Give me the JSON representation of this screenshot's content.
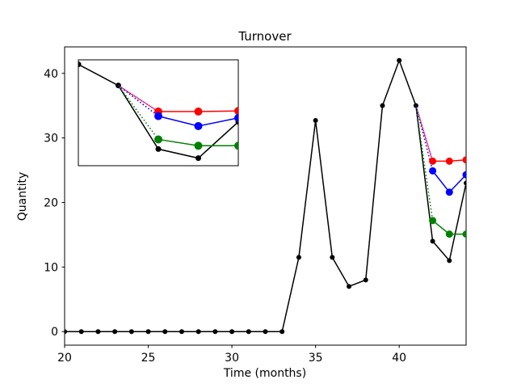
{
  "figure": {
    "background": "#ffffff"
  },
  "chart_data": {
    "type": "line",
    "title": "Turnover",
    "xlabel": "Time (months)",
    "ylabel": "Quantity",
    "xlim": [
      20,
      44
    ],
    "ylim": [
      -2.1,
      44.1
    ],
    "xticks": [
      20,
      25,
      30,
      35,
      40
    ],
    "yticks": [
      0,
      10,
      20,
      30,
      40
    ],
    "grid": false,
    "legend": null,
    "colors": {
      "observed": "#000000",
      "forecast_red": "#ff0000",
      "forecast_blue": "#0000ff",
      "forecast_green": "#008000",
      "connector_magenta": "#bf00bf",
      "spine": "#000000",
      "background": "#ffffff"
    },
    "series": [
      {
        "name": "observed",
        "color": "#000000",
        "line": "solid",
        "marker": "o",
        "x": [
          20,
          21,
          22,
          23,
          24,
          25,
          26,
          27,
          28,
          29,
          30,
          31,
          32,
          33,
          34,
          35,
          36,
          37,
          38,
          39,
          40,
          41,
          42,
          43,
          44
        ],
        "y": [
          0,
          0,
          0,
          0,
          0,
          0,
          0,
          0,
          0,
          0,
          0,
          0,
          0,
          0,
          11.5,
          32.7,
          11.5,
          7,
          8,
          35,
          42,
          35,
          14,
          11,
          23
        ]
      },
      {
        "name": "forecast-red",
        "color": "#ff0000",
        "line": "solid",
        "marker": "o",
        "x": [
          42,
          43,
          44
        ],
        "y": [
          26.4,
          26.4,
          26.6
        ]
      },
      {
        "name": "forecast-blue",
        "color": "#0000ff",
        "line": "solid",
        "marker": "o",
        "x": [
          42,
          43,
          44
        ],
        "y": [
          24.9,
          21.6,
          24.3
        ]
      },
      {
        "name": "forecast-green",
        "color": "#008000",
        "line": "solid",
        "marker": "o",
        "x": [
          42,
          43,
          44
        ],
        "y": [
          17.2,
          15.1,
          15.1
        ]
      }
    ],
    "connectors": [
      {
        "name": "connector-magenta",
        "color": "#bf00bf",
        "style": "dotted",
        "from": [
          41,
          35
        ],
        "to": [
          42,
          26.4
        ]
      },
      {
        "name": "connector-red",
        "color": "#ff0000",
        "style": "dotted",
        "from": [
          41,
          35
        ],
        "to": [
          42,
          26.4
        ]
      },
      {
        "name": "connector-blue",
        "color": "#0000ff",
        "style": "dotted",
        "from": [
          41,
          35
        ],
        "to": [
          42,
          24.9
        ]
      },
      {
        "name": "connector-green",
        "color": "#008000",
        "style": "dotted",
        "from": [
          41,
          35
        ],
        "to": [
          42,
          17.2
        ]
      }
    ],
    "inset": {
      "description": "zoomed view of months 40-44",
      "xlim": [
        40,
        44
      ],
      "ylim": [
        8.5,
        43.5
      ],
      "xticks": [],
      "yticks": [],
      "series": [
        {
          "name": "observed",
          "color": "#000000",
          "line": "solid",
          "marker": "o",
          "x": [
            40,
            41,
            42,
            43,
            44
          ],
          "y": [
            42,
            35,
            14,
            11,
            23
          ]
        },
        {
          "name": "forecast-red",
          "color": "#ff0000",
          "line": "solid",
          "marker": "o",
          "x": [
            42,
            43,
            44
          ],
          "y": [
            26.4,
            26.4,
            26.6
          ]
        },
        {
          "name": "forecast-blue",
          "color": "#0000ff",
          "line": "solid",
          "marker": "o",
          "x": [
            42,
            43,
            44
          ],
          "y": [
            24.9,
            21.6,
            24.3
          ]
        },
        {
          "name": "forecast-green",
          "color": "#008000",
          "line": "solid",
          "marker": "o",
          "x": [
            42,
            43,
            44
          ],
          "y": [
            17.2,
            15.1,
            15.1
          ]
        }
      ],
      "connectors": [
        {
          "name": "connector-magenta",
          "color": "#bf00bf",
          "style": "dotted",
          "from": [
            41,
            35
          ],
          "to": [
            42,
            26.4
          ]
        },
        {
          "name": "connector-red",
          "color": "#ff0000",
          "style": "dotted",
          "from": [
            41,
            35
          ],
          "to": [
            42,
            26.4
          ]
        },
        {
          "name": "connector-blue",
          "color": "#0000ff",
          "style": "dotted",
          "from": [
            41,
            35
          ],
          "to": [
            42,
            24.9
          ]
        },
        {
          "name": "connector-green",
          "color": "#008000",
          "style": "dotted",
          "from": [
            41,
            35
          ],
          "to": [
            42,
            17.2
          ]
        }
      ]
    }
  }
}
